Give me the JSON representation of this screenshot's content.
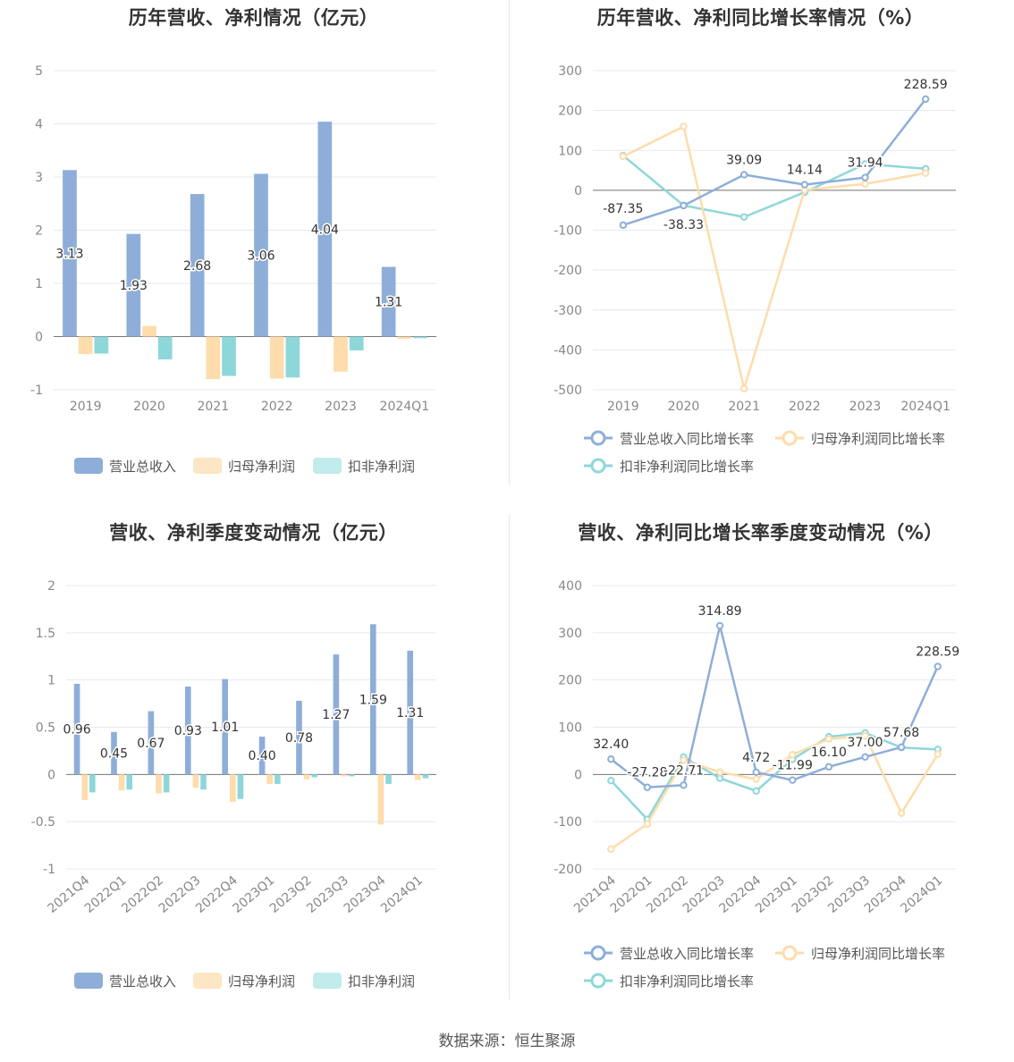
{
  "source_text": "数据来源：恒生聚源",
  "colors": {
    "revenue": "#8eaed9",
    "net_profit": "#fedcab",
    "deducted_profit": "#8ed7d9",
    "grid": "#e6e8f0",
    "axis": "#999999"
  },
  "chart_data": [
    {
      "type": "bar",
      "title": "历年营收、净利情况（亿元）",
      "categories": [
        "2019",
        "2020",
        "2021",
        "2022",
        "2023",
        "2024Q1"
      ],
      "ylim": [
        -1,
        5
      ],
      "yticks": [
        5,
        4,
        3,
        2,
        1,
        0,
        -1
      ],
      "grid": true,
      "legend_position": "bottom",
      "series": [
        {
          "name": "营业总收入",
          "values": [
            3.13,
            1.93,
            2.68,
            3.06,
            4.04,
            1.31
          ],
          "labels": [
            "3.13",
            "1.93",
            "2.68",
            "3.06",
            "4.04",
            "1.31"
          ]
        },
        {
          "name": "归母净利润",
          "values": [
            -0.33,
            0.2,
            -0.8,
            -0.79,
            -0.66,
            -0.04
          ]
        },
        {
          "name": "扣非净利润",
          "values": [
            -0.32,
            -0.43,
            -0.74,
            -0.77,
            -0.26,
            -0.03
          ]
        }
      ]
    },
    {
      "type": "line",
      "title": "历年营收、净利同比增长率情况（%）",
      "categories": [
        "2019",
        "2020",
        "2021",
        "2022",
        "2023",
        "2024Q1"
      ],
      "ylim": [
        -500,
        300
      ],
      "yticks": [
        300,
        200,
        100,
        0,
        -100,
        -200,
        -300,
        -400,
        -500
      ],
      "grid": true,
      "legend_position": "bottom",
      "series": [
        {
          "name": "营业总收入同比增长率",
          "values": [
            -87.35,
            -38.33,
            39.09,
            14.14,
            31.94,
            228.59
          ],
          "labels": [
            "-87.35",
            "-38.33",
            "39.09",
            "14.14",
            "31.94",
            "228.59"
          ]
        },
        {
          "name": "归母净利润同比增长率",
          "values": [
            85,
            160,
            -497,
            1,
            16,
            43
          ]
        },
        {
          "name": "扣非净利润同比增长率",
          "values": [
            87,
            -38,
            -67,
            -5,
            66,
            54
          ]
        }
      ]
    },
    {
      "type": "bar",
      "title": "营收、净利季度变动情况（亿元）",
      "categories": [
        "2021Q4",
        "2022Q1",
        "2022Q2",
        "2022Q3",
        "2022Q4",
        "2023Q1",
        "2023Q2",
        "2023Q3",
        "2023Q4",
        "2024Q1"
      ],
      "ylim": [
        -1,
        2
      ],
      "yticks": [
        "2",
        "1.5",
        "1",
        "0.5",
        "0",
        "-0.5",
        "-1"
      ],
      "grid": true,
      "legend_position": "bottom",
      "series": [
        {
          "name": "营业总收入",
          "values": [
            0.96,
            0.45,
            0.67,
            0.93,
            1.01,
            0.4,
            0.78,
            1.27,
            1.59,
            1.31
          ],
          "labels": [
            "0.96",
            "0.45",
            "0.67",
            "0.93",
            "1.01",
            "0.40",
            "0.78",
            "1.27",
            "1.59",
            "1.31"
          ]
        },
        {
          "name": "归母净利润",
          "values": [
            -0.27,
            -0.17,
            -0.2,
            -0.14,
            -0.29,
            -0.1,
            -0.05,
            -0.02,
            -0.53,
            -0.06
          ]
        },
        {
          "name": "扣非净利润",
          "values": [
            -0.19,
            -0.16,
            -0.19,
            -0.16,
            -0.26,
            -0.1,
            -0.03,
            -0.02,
            -0.1,
            -0.04
          ]
        }
      ]
    },
    {
      "type": "line",
      "title": "营收、净利同比增长率季度变动情况（%）",
      "categories": [
        "2021Q4",
        "2022Q1",
        "2022Q2",
        "2022Q3",
        "2022Q4",
        "2023Q1",
        "2023Q2",
        "2023Q3",
        "2023Q4",
        "2024Q1"
      ],
      "ylim": [
        -200,
        400
      ],
      "yticks": [
        400,
        300,
        200,
        100,
        0,
        -100,
        -200
      ],
      "grid": true,
      "legend_position": "bottom",
      "series": [
        {
          "name": "营业总收入同比增长率",
          "values": [
            32.4,
            -27.28,
            -22.71,
            314.89,
            4.72,
            -11.99,
            16.1,
            37.0,
            57.68,
            228.59
          ],
          "labels": [
            "32.40",
            "-27.28",
            "-22.71",
            "314.89",
            "4.72",
            "-11.99",
            "16.10",
            "37.00",
            "57.68",
            "228.59"
          ]
        },
        {
          "name": "归母净利润同比增长率",
          "values": [
            -158,
            -105,
            30,
            5,
            -10,
            42,
            75,
            82,
            -82,
            43
          ]
        },
        {
          "name": "扣非净利润同比增长率",
          "values": [
            -13,
            -95,
            37,
            -8,
            -35,
            32,
            80,
            88,
            57,
            53
          ]
        }
      ]
    }
  ]
}
